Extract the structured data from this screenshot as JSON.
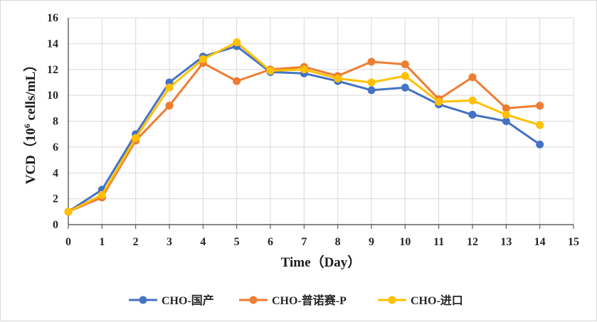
{
  "chart_data": {
    "type": "line",
    "xlabel": "Time（Day）",
    "ylabel": "VCD（10⁶ cells/mL）",
    "ylabel_parts": {
      "pre": "VCD（10",
      "sup": "6",
      "post": " cells/mL）"
    },
    "xlim": [
      0,
      15
    ],
    "ylim": [
      0,
      16
    ],
    "x_ticks": [
      "0",
      "1",
      "2",
      "3",
      "4",
      "5",
      "6",
      "7",
      "8",
      "9",
      "10",
      "11",
      "12",
      "13",
      "14",
      "15"
    ],
    "y_ticks": [
      "0",
      "2",
      "4",
      "6",
      "8",
      "10",
      "12",
      "14",
      "16"
    ],
    "grid": true,
    "legend_position": "bottom",
    "x": [
      0,
      1,
      2,
      3,
      4,
      5,
      6,
      7,
      8,
      9,
      10,
      11,
      12,
      13,
      14
    ],
    "series": [
      {
        "name": "CHO-国产",
        "color": "#4472C4",
        "values": [
          1.0,
          2.7,
          7.0,
          11.0,
          13.0,
          13.8,
          11.8,
          11.7,
          11.1,
          10.4,
          10.6,
          9.3,
          8.5,
          8.0,
          6.2
        ]
      },
      {
        "name": "CHO-普诺赛-P",
        "color": "#ED7D31",
        "values": [
          1.0,
          2.1,
          6.5,
          9.2,
          12.5,
          11.1,
          12.0,
          12.2,
          11.5,
          12.6,
          12.4,
          9.7,
          11.4,
          9.0,
          9.2
        ]
      },
      {
        "name": "CHO-进口",
        "color": "#FFC000",
        "values": [
          1.0,
          2.3,
          6.7,
          10.6,
          12.8,
          14.1,
          11.9,
          12.0,
          11.3,
          11.0,
          11.5,
          9.5,
          9.6,
          8.5,
          7.7
        ]
      }
    ]
  }
}
